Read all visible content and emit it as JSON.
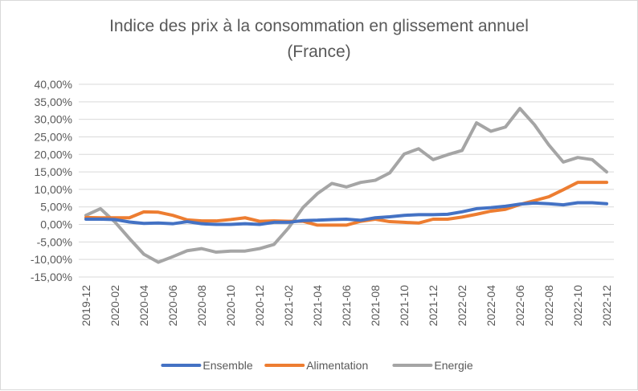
{
  "chart_data": {
    "type": "line",
    "title": "Indice des prix à la consommation en glissement annuel",
    "subtitle": "(France)",
    "x": [
      "2019-12",
      "2020-01",
      "2020-02",
      "2020-03",
      "2020-04",
      "2020-05",
      "2020-06",
      "2020-07",
      "2020-08",
      "2020-09",
      "2020-10",
      "2020-11",
      "2020-12",
      "2021-01",
      "2021-02",
      "2021-03",
      "2021-04",
      "2021-05",
      "2021-06",
      "2021-07",
      "2021-08",
      "2021-09",
      "2021-10",
      "2021-11",
      "2021-12",
      "2022-01",
      "2022-02",
      "2022-03",
      "2022-04",
      "2022-05",
      "2022-06",
      "2022-07",
      "2022-08",
      "2022-09",
      "2022-10",
      "2022-11",
      "2022-12"
    ],
    "x_tick_labels": [
      "2019-12",
      "2020-02",
      "2020-04",
      "2020-06",
      "2020-08",
      "2020-10",
      "2020-12",
      "2021-02",
      "2021-04",
      "2021-06",
      "2021-08",
      "2021-10",
      "2021-12",
      "2022-02",
      "2022-04",
      "2022-06",
      "2022-08",
      "2022-10",
      "2022-12"
    ],
    "y_tick_labels": [
      "40,00%",
      "35,00%",
      "30,00%",
      "25,00%",
      "20,00%",
      "15,00%",
      "10,00%",
      "5,00%",
      "0,00%",
      "-5,00%",
      "-10,00%",
      "-15,00%"
    ],
    "ylim": [
      -15,
      40
    ],
    "y_step": 5,
    "grid": true,
    "legend_position": "bottom",
    "series": [
      {
        "name": "Ensemble",
        "color": "#4472C4",
        "values": [
          1.5,
          1.5,
          1.4,
          0.7,
          0.3,
          0.4,
          0.2,
          0.8,
          0.2,
          0.0,
          0.0,
          0.2,
          0.0,
          0.6,
          0.6,
          1.1,
          1.2,
          1.4,
          1.5,
          1.2,
          1.9,
          2.2,
          2.6,
          2.8,
          2.8,
          2.9,
          3.6,
          4.5,
          4.8,
          5.2,
          5.8,
          6.1,
          5.9,
          5.6,
          6.2,
          6.2,
          5.9
        ]
      },
      {
        "name": "Alimentation",
        "color": "#ED7D31",
        "values": [
          2.0,
          1.9,
          1.9,
          1.9,
          3.6,
          3.5,
          2.6,
          1.3,
          1.0,
          1.0,
          1.4,
          1.9,
          0.9,
          1.0,
          0.9,
          0.9,
          -0.2,
          -0.2,
          -0.2,
          0.9,
          1.5,
          0.8,
          0.6,
          0.4,
          1.5,
          1.5,
          2.1,
          2.9,
          3.8,
          4.3,
          5.7,
          6.8,
          7.9,
          9.9,
          12.0,
          12.0,
          12.0
        ]
      },
      {
        "name": "Energie",
        "color": "#A5A5A5",
        "values": [
          2.6,
          4.5,
          0.7,
          -4.0,
          -8.5,
          -10.8,
          -9.2,
          -7.5,
          -6.9,
          -7.9,
          -7.6,
          -7.6,
          -6.9,
          -5.7,
          -1.0,
          4.8,
          8.8,
          11.7,
          10.7,
          12.0,
          12.6,
          14.7,
          20.1,
          21.6,
          18.5,
          19.9,
          21.1,
          29.0,
          26.6,
          27.8,
          33.1,
          28.5,
          22.7,
          17.8,
          19.1,
          18.5,
          15.0
        ]
      }
    ]
  }
}
